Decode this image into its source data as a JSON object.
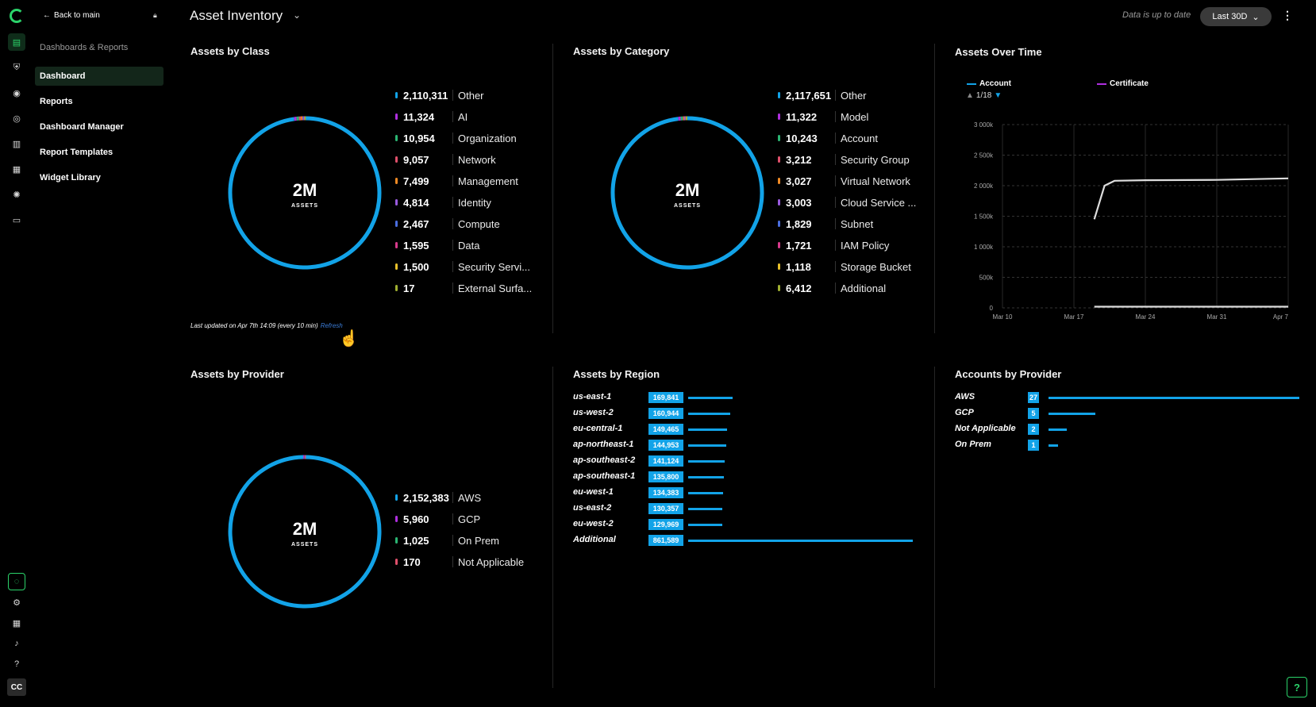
{
  "app": {
    "title": "Asset Inventory",
    "status": "Data is up to date",
    "range_label": "Last 30D"
  },
  "sidebar": {
    "back_label": "Back to main",
    "section_label": "Dashboards & Reports",
    "items": [
      {
        "label": "Dashboard",
        "active": true
      },
      {
        "label": "Reports",
        "active": false
      },
      {
        "label": "Dashboard Manager",
        "active": false
      },
      {
        "label": "Report Templates",
        "active": false
      },
      {
        "label": "Widget Library",
        "active": false
      }
    ],
    "user_initials": "CC"
  },
  "panels": {
    "class": {
      "title": "Assets by Class",
      "center_value": "2M",
      "center_label": "ASSETS",
      "updated": "Last updated on Apr 7th 14:09 (every 10 min)",
      "refresh": "Refresh",
      "legend": [
        {
          "value": "2,110,311",
          "label": "Other",
          "color": "#12a3e8"
        },
        {
          "value": "11,324",
          "label": "AI",
          "color": "#b02fe0"
        },
        {
          "value": "10,954",
          "label": "Organization",
          "color": "#2bb673"
        },
        {
          "value": "9,057",
          "label": "Network",
          "color": "#e0506b"
        },
        {
          "value": "7,499",
          "label": "Management",
          "color": "#f08a24"
        },
        {
          "value": "4,814",
          "label": "Identity",
          "color": "#9a5be0"
        },
        {
          "value": "2,467",
          "label": "Compute",
          "color": "#4a6ee0"
        },
        {
          "value": "1,595",
          "label": "Data",
          "color": "#d83a8c"
        },
        {
          "value": "1,500",
          "label": "Security Servi...",
          "color": "#e8c12a"
        },
        {
          "value": "17",
          "label": "External Surfa...",
          "color": "#a0b030"
        }
      ]
    },
    "category": {
      "title": "Assets by Category",
      "center_value": "2M",
      "center_label": "ASSETS",
      "legend": [
        {
          "value": "2,117,651",
          "label": "Other",
          "color": "#12a3e8"
        },
        {
          "value": "11,322",
          "label": "Model",
          "color": "#b02fe0"
        },
        {
          "value": "10,243",
          "label": "Account",
          "color": "#2bb673"
        },
        {
          "value": "3,212",
          "label": "Security Group",
          "color": "#e0506b"
        },
        {
          "value": "3,027",
          "label": "Virtual Network",
          "color": "#f08a24"
        },
        {
          "value": "3,003",
          "label": "Cloud Service ...",
          "color": "#9a5be0"
        },
        {
          "value": "1,829",
          "label": "Subnet",
          "color": "#4a6ee0"
        },
        {
          "value": "1,721",
          "label": "IAM Policy",
          "color": "#d83a8c"
        },
        {
          "value": "1,118",
          "label": "Storage Bucket",
          "color": "#e8c12a"
        },
        {
          "value": "6,412",
          "label": "Additional",
          "color": "#a0b030"
        }
      ]
    },
    "provider": {
      "title": "Assets by Provider",
      "center_value": "2M",
      "center_label": "ASSETS",
      "legend": [
        {
          "value": "2,152,383",
          "label": "AWS",
          "color": "#12a3e8"
        },
        {
          "value": "5,960",
          "label": "GCP",
          "color": "#b02fe0"
        },
        {
          "value": "1,025",
          "label": "On Prem",
          "color": "#2bb673"
        },
        {
          "value": "170",
          "label": "Not Applicable",
          "color": "#e0506b"
        }
      ]
    },
    "region": {
      "title": "Assets by Region",
      "rows": [
        {
          "name": "us-east-1",
          "value": "169,841",
          "n": 169841
        },
        {
          "name": "us-west-2",
          "value": "160,944",
          "n": 160944
        },
        {
          "name": "eu-central-1",
          "value": "149,465",
          "n": 149465
        },
        {
          "name": "ap-northeast-1",
          "value": "144,953",
          "n": 144953
        },
        {
          "name": "ap-southeast-2",
          "value": "141,124",
          "n": 141124
        },
        {
          "name": "ap-southeast-1",
          "value": "135,800",
          "n": 135800
        },
        {
          "name": "eu-west-1",
          "value": "134,383",
          "n": 134383
        },
        {
          "name": "us-east-2",
          "value": "130,357",
          "n": 130357
        },
        {
          "name": "eu-west-2",
          "value": "129,969",
          "n": 129969
        },
        {
          "name": "Additional",
          "value": "861,589",
          "n": 861589
        }
      ]
    },
    "accounts": {
      "title": "Accounts by Provider",
      "rows": [
        {
          "name": "AWS",
          "value": "27",
          "n": 27
        },
        {
          "name": "GCP",
          "value": "5",
          "n": 5
        },
        {
          "name": "Not Applicable",
          "value": "2",
          "n": 2
        },
        {
          "name": "On Prem",
          "value": "1",
          "n": 1
        }
      ]
    },
    "over_time": {
      "title": "Assets Over Time",
      "pager": "1/18",
      "chart_data": {
        "type": "line",
        "series": [
          {
            "name": "Account",
            "color": "#12a3e8"
          },
          {
            "name": "Certificate",
            "color": "#b02fe0"
          }
        ],
        "lines": [
          {
            "color": "#dddddd",
            "points": [
              [
                "2025-03-19",
                1450000
              ],
              [
                "2025-03-20",
                2000000
              ],
              [
                "2025-03-21",
                2080000
              ],
              [
                "2025-03-24",
                2090000
              ],
              [
                "2025-03-31",
                2095000
              ],
              [
                "2025-04-07",
                2120000
              ]
            ]
          },
          {
            "color": "#dddddd",
            "points": [
              [
                "2025-03-19",
                20000
              ],
              [
                "2025-04-07",
                20000
              ]
            ]
          }
        ],
        "x_ticks": [
          "Mar 10",
          "Mar 17",
          "Mar 24",
          "Mar 31",
          "Apr 7"
        ],
        "y_ticks": [
          "0",
          "500k",
          "1 000k",
          "1 500k",
          "2 000k",
          "2 500k",
          "3 000k"
        ],
        "ylim": [
          0,
          3000000
        ],
        "xlim": [
          "2025-03-10",
          "2025-04-07"
        ],
        "grid": true,
        "legend_position": "top-left"
      }
    }
  }
}
